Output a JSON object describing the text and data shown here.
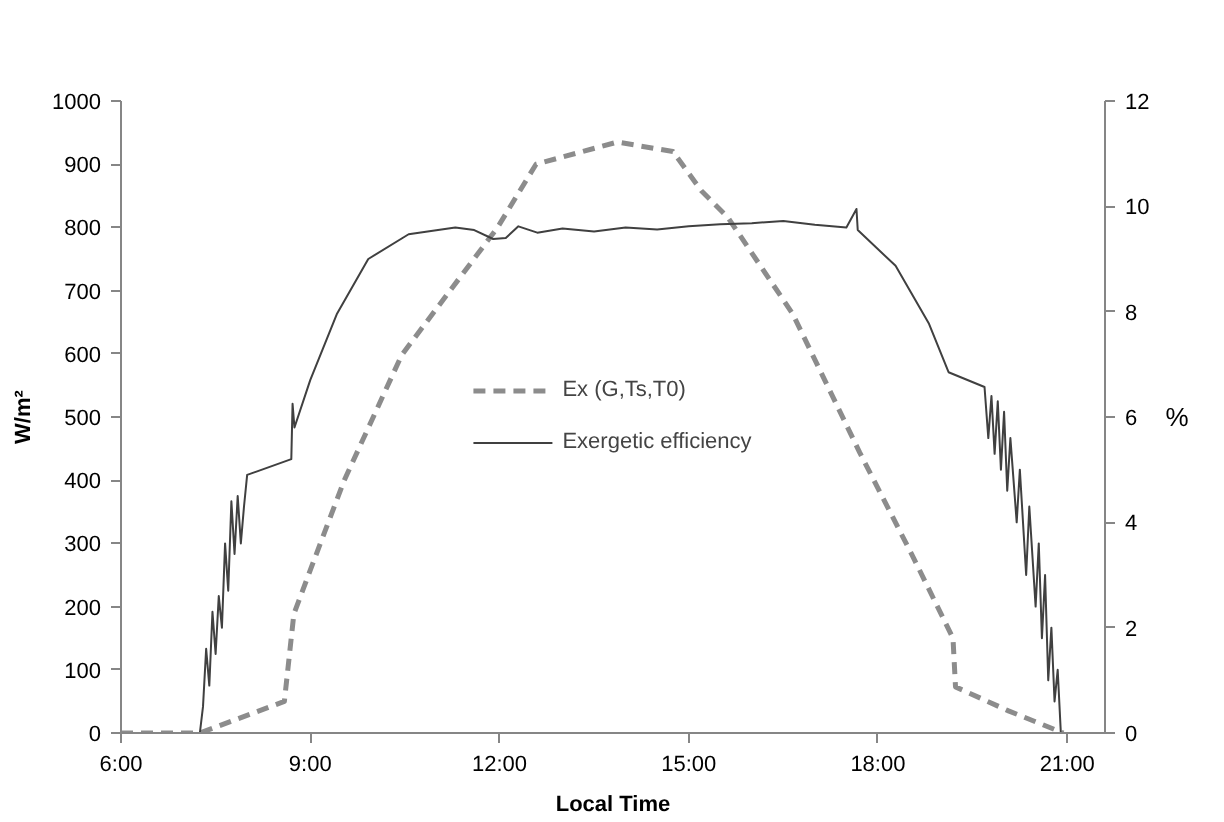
{
  "chart_data": {
    "type": "line",
    "xlabel": "Local Time",
    "ylabel": "W/m²",
    "y2label": "%",
    "xlim": [
      6,
      21.6
    ],
    "xticks": [
      {
        "value": 6,
        "label": "6:00"
      },
      {
        "value": 9,
        "label": "9:00"
      },
      {
        "value": 12,
        "label": "12:00"
      },
      {
        "value": 15,
        "label": "15:00"
      },
      {
        "value": 18,
        "label": "18:00"
      },
      {
        "value": 21,
        "label": "21:00"
      }
    ],
    "ylim": [
      0,
      1000
    ],
    "yticks": [
      0,
      100,
      200,
      300,
      400,
      500,
      600,
      700,
      800,
      900,
      1000
    ],
    "y2lim": [
      0,
      12
    ],
    "y2ticks": [
      0,
      2,
      4,
      6,
      8,
      10,
      12
    ],
    "grid": false,
    "legend": "center",
    "series": [
      {
        "name": "Ex (G,Ts,T0)",
        "color": "#8c8c8c",
        "line_style": "dashed",
        "x": [
          6,
          7.25,
          8.59,
          8.74,
          9.16,
          9.54,
          10.45,
          11.97,
          12.58,
          13.87,
          14.75,
          15.2,
          15.62,
          16.65,
          17.71,
          18.55,
          19.19,
          19.23,
          20.07,
          20.94
        ],
        "values": [
          0,
          0,
          50,
          188,
          300,
          400,
          598,
          800,
          900,
          935,
          920,
          858,
          816,
          663,
          444,
          280,
          150,
          73,
          35,
          0
        ]
      },
      {
        "name": "Exergetic efficiency",
        "color": "#404040",
        "line_style": "solid",
        "axis": "y2",
        "x": [
          6,
          7.25,
          7.3,
          7.35,
          7.4,
          7.45,
          7.5,
          7.55,
          7.6,
          7.65,
          7.7,
          7.75,
          7.8,
          7.85,
          7.9,
          7.95,
          8.0,
          8.7,
          8.72,
          8.75,
          9.0,
          9.42,
          9.92,
          10.56,
          11.3,
          11.6,
          11.9,
          12.1,
          12.3,
          12.6,
          13.0,
          13.5,
          14.0,
          14.5,
          15.0,
          15.5,
          16.0,
          16.5,
          17.0,
          17.5,
          17.66,
          17.68,
          18.28,
          18.81,
          19.12,
          19.69,
          19.75,
          19.8,
          19.85,
          19.9,
          19.95,
          20.0,
          20.05,
          20.1,
          20.2,
          20.25,
          20.35,
          20.4,
          20.5,
          20.55,
          20.6,
          20.65,
          20.7,
          20.75,
          20.8,
          20.85,
          20.9,
          21.6
        ],
        "values": [
          0,
          0,
          0.5,
          1.6,
          0.9,
          2.3,
          1.5,
          2.6,
          2.0,
          3.6,
          2.7,
          4.4,
          3.4,
          4.5,
          3.6,
          4.3,
          4.9,
          5.2,
          6.25,
          5.8,
          6.7,
          7.95,
          9.0,
          9.47,
          9.6,
          9.55,
          9.38,
          9.4,
          9.62,
          9.5,
          9.58,
          9.52,
          9.6,
          9.56,
          9.62,
          9.66,
          9.68,
          9.72,
          9.65,
          9.6,
          9.95,
          9.55,
          8.87,
          7.77,
          6.85,
          6.57,
          5.6,
          6.4,
          5.3,
          6.3,
          5.0,
          6.1,
          4.6,
          5.6,
          4.0,
          5.0,
          3.0,
          4.3,
          2.4,
          3.6,
          1.8,
          3.0,
          1.0,
          2.0,
          0.6,
          1.2,
          0,
          0
        ]
      }
    ]
  }
}
